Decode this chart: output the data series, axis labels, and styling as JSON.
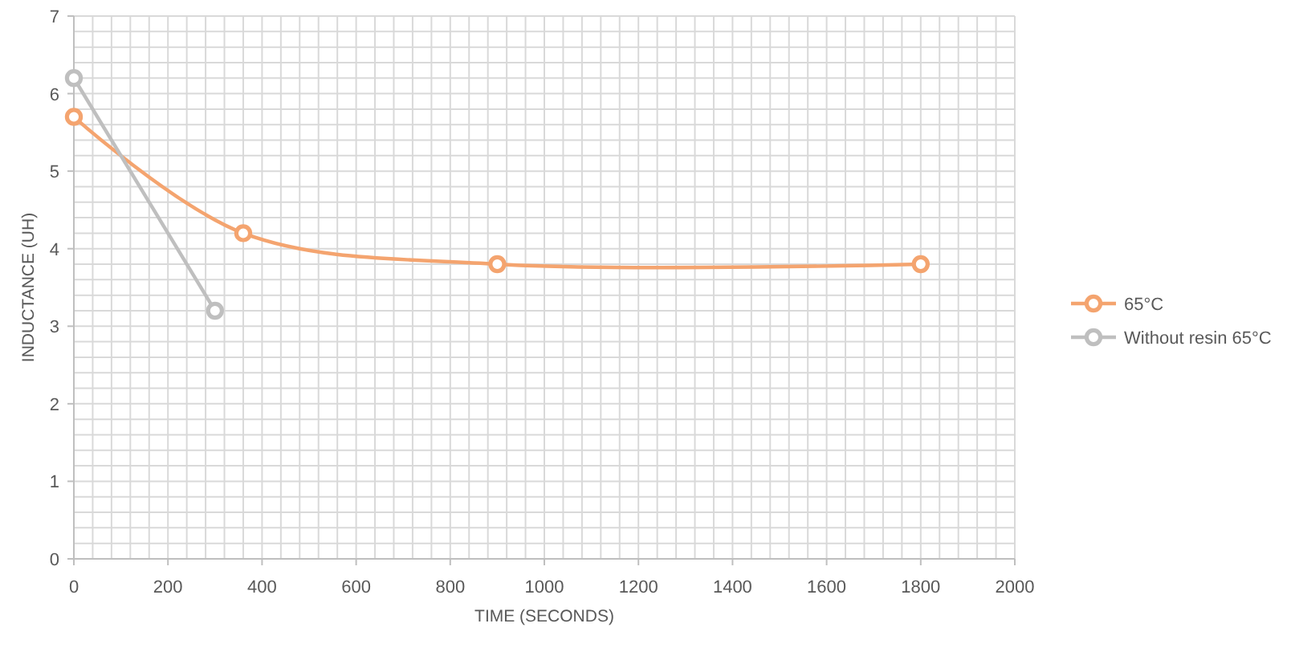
{
  "chart_data": {
    "type": "line",
    "xlabel": "TIME (SECONDS)",
    "ylabel": "INDUCTANCE (UH)",
    "series": [
      {
        "name": "65°C",
        "color": "#f4a46f",
        "x": [
          0,
          360,
          900,
          1800
        ],
        "values": [
          5.7,
          4.2,
          3.8,
          3.8
        ]
      },
      {
        "name": "Without resin 65°C",
        "color": "#bfbfbf",
        "x": [
          0,
          300
        ],
        "values": [
          6.2,
          3.2
        ]
      }
    ],
    "xlim": [
      0,
      2000
    ],
    "xticks": [
      0,
      {
        "value": 40,
        "label": null
      },
      {
        "value": 80,
        "label": null
      },
      {
        "value": 120,
        "label": null
      },
      {
        "value": 160,
        "label": null
      },
      200,
      {
        "value": 240,
        "label": null
      },
      {
        "value": 280,
        "label": null
      },
      {
        "value": 320,
        "label": null
      },
      {
        "value": 360,
        "label": null
      },
      400,
      {
        "value": 440,
        "label": null
      },
      {
        "value": 480,
        "label": null
      },
      {
        "value": 520,
        "label": null
      },
      {
        "value": 560,
        "label": null
      },
      600,
      {
        "value": 640,
        "label": null
      },
      {
        "value": 680,
        "label": null
      },
      {
        "value": 720,
        "label": null
      },
      {
        "value": 760,
        "label": null
      },
      800,
      {
        "value": 840,
        "label": null
      },
      {
        "value": 880,
        "label": null
      },
      {
        "value": 920,
        "label": null
      },
      {
        "value": 960,
        "label": null
      },
      1000,
      {
        "value": 1040,
        "label": null
      },
      {
        "value": 1080,
        "label": null
      },
      {
        "value": 1120,
        "label": null
      },
      {
        "value": 1160,
        "label": null
      },
      1200,
      {
        "value": 1240,
        "label": null
      },
      {
        "value": 1280,
        "label": null
      },
      {
        "value": 1320,
        "label": null
      },
      {
        "value": 1360,
        "label": null
      },
      1400,
      {
        "value": 1440,
        "label": null
      },
      {
        "value": 1480,
        "label": null
      },
      {
        "value": 1520,
        "label": null
      },
      {
        "value": 1560,
        "label": null
      },
      1600,
      {
        "value": 1640,
        "label": null
      },
      {
        "value": 1680,
        "label": null
      },
      {
        "value": 1720,
        "label": null
      },
      {
        "value": 1760,
        "label": null
      },
      1800,
      {
        "value": 1840,
        "label": null
      },
      {
        "value": 1880,
        "label": null
      },
      {
        "value": 1920,
        "label": null
      },
      {
        "value": 1960,
        "label": null
      },
      2000
    ],
    "ylim": [
      0,
      7
    ],
    "yticks": [
      0,
      {
        "value": 0.2,
        "label": null
      },
      {
        "value": 0.4,
        "label": null
      },
      {
        "value": 0.6,
        "label": null
      },
      {
        "value": 0.8,
        "label": null
      },
      1,
      {
        "value": 1.2,
        "label": null
      },
      {
        "value": 1.4,
        "label": null
      },
      {
        "value": 1.6,
        "label": null
      },
      {
        "value": 1.8,
        "label": null
      },
      2,
      {
        "value": 2.2,
        "label": null
      },
      {
        "value": 2.4,
        "label": null
      },
      {
        "value": 2.6,
        "label": null
      },
      {
        "value": 2.8,
        "label": null
      },
      3,
      {
        "value": 3.2,
        "label": null
      },
      {
        "value": 3.4,
        "label": null
      },
      {
        "value": 3.6,
        "label": null
      },
      {
        "value": 3.8,
        "label": null
      },
      4,
      {
        "value": 4.2,
        "label": null
      },
      {
        "value": 4.4,
        "label": null
      },
      {
        "value": 4.6,
        "label": null
      },
      {
        "value": 4.8,
        "label": null
      },
      5,
      {
        "value": 5.2,
        "label": null
      },
      {
        "value": 5.4,
        "label": null
      },
      {
        "value": 5.6,
        "label": null
      },
      {
        "value": 5.8,
        "label": null
      },
      6,
      {
        "value": 6.2,
        "label": null
      },
      {
        "value": 6.4,
        "label": null
      },
      {
        "value": 6.6,
        "label": null
      },
      {
        "value": 6.8,
        "label": null
      },
      7
    ],
    "grid": true,
    "legend": "right",
    "marker": "circle",
    "line_style": "solid"
  }
}
